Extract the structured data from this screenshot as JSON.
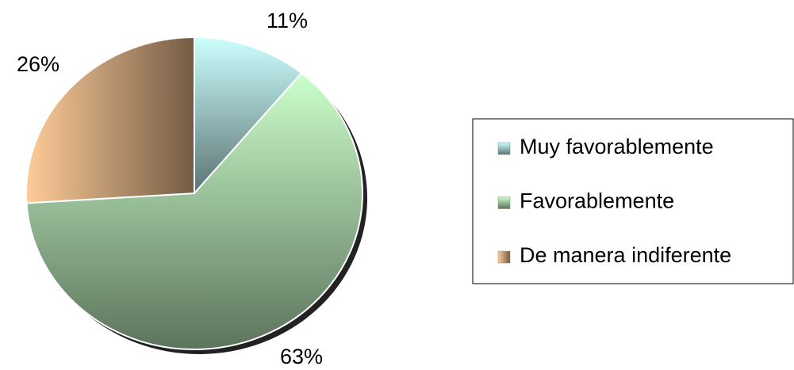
{
  "chart_data": {
    "type": "pie",
    "categories": [
      "Muy favorablemente",
      "Favorablemente",
      "De manera indiferente"
    ],
    "values": [
      11,
      63,
      26
    ],
    "value_labels": [
      "11%",
      "63%",
      "26%"
    ],
    "colors": [
      "#ccffff",
      "#ccffcc",
      "#ffcc99"
    ],
    "legend": "right"
  }
}
